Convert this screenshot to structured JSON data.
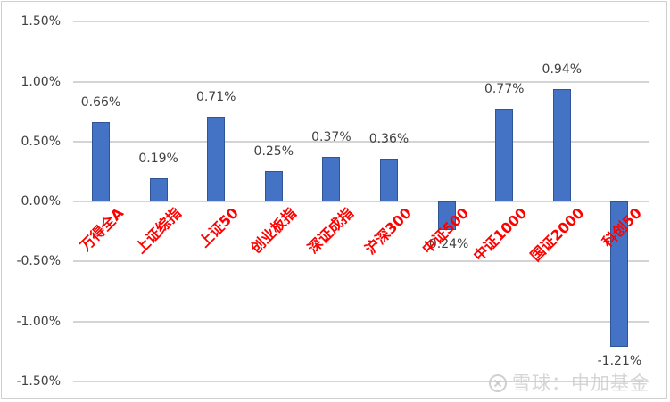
{
  "chart_data": {
    "type": "bar",
    "title": "",
    "xlabel": "",
    "ylabel": "",
    "ylim": [
      -1.5,
      1.5
    ],
    "yticks": [
      "1.50%",
      "1.00%",
      "0.50%",
      "0.00%",
      "-0.50%",
      "-1.00%",
      "-1.50%"
    ],
    "grid": true,
    "legend": "none",
    "categories": [
      "万得全A",
      "上证综指",
      "上证50",
      "创业板指",
      "深证成指",
      "沪深300",
      "中证500",
      "中证1000",
      "国证2000",
      "科创50"
    ],
    "values": [
      0.66,
      0.19,
      0.71,
      0.25,
      0.37,
      0.36,
      -0.24,
      0.77,
      0.94,
      -1.21
    ],
    "data_labels": [
      "0.66%",
      "0.19%",
      "0.71%",
      "0.25%",
      "0.37%",
      "0.36%",
      "-0.24%",
      "0.77%",
      "0.94%",
      "-1.21%"
    ],
    "colors": {
      "bar": "#4472c4",
      "category_label": "#ff0000",
      "grid": "#d4d4d4",
      "text": "#404040"
    }
  },
  "watermark": {
    "text": "雪球：中加基金",
    "icon": "snowball-logo-icon"
  }
}
